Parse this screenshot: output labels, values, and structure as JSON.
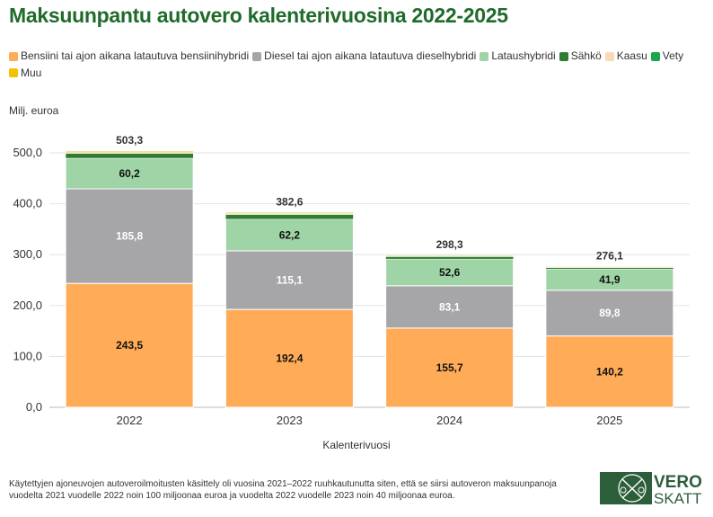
{
  "chart_data": {
    "type": "stacked-bar",
    "title": "Maksuunpantu autovero kalenterivuosina 2022-2025",
    "xlabel": "Kalenterivuosi",
    "ylabel": "Milj. euroa",
    "ylim": [
      0,
      500
    ],
    "yticks": [
      "0,0",
      "100,0",
      "200,0",
      "300,0",
      "400,0",
      "500,0"
    ],
    "grid": true,
    "legend_position": "top",
    "categories": [
      "2022",
      "2023",
      "2024",
      "2025"
    ],
    "totals": [
      "503,3",
      "382,6",
      "298,3",
      "276,1"
    ],
    "series": [
      {
        "name": "Bensiini tai ajon aikana latautuva bensiinihybridi",
        "color": "#ffab57",
        "values": [
          243.5,
          192.4,
          155.7,
          140.2
        ],
        "labels": [
          "243,5",
          "192,4",
          "155,7",
          "140,2"
        ]
      },
      {
        "name": "Diesel tai ajon aikana latautuva dieselhybridi",
        "color": "#a6a6a8",
        "values": [
          185.8,
          115.1,
          83.1,
          89.8
        ],
        "labels": [
          "185,8",
          "115,1",
          "83,1",
          "89,8"
        ]
      },
      {
        "name": "Lataushybridi",
        "color": "#9fd4a6",
        "values": [
          60.2,
          62.2,
          52.6,
          41.9
        ],
        "labels": [
          "60,2",
          "62,2",
          "52,6",
          "41,9"
        ]
      },
      {
        "name": "Sähkö",
        "color": "#2e7d32",
        "values": [
          9.0,
          9.0,
          4.5,
          2.5
        ]
      },
      {
        "name": "Kaasu",
        "color": "#fcd9b5",
        "values": [
          3.0,
          2.5,
          1.5,
          1.0
        ]
      },
      {
        "name": "Vety",
        "color": "#1aa64a",
        "values": [
          0.3,
          0.2,
          0.1,
          0.1
        ]
      },
      {
        "name": "Muu",
        "color": "#f2c200",
        "values": [
          1.5,
          1.2,
          0.8,
          0.6
        ]
      }
    ]
  },
  "note": "Käytettyjen ajoneuvojen autoveroilmoitusten käsittely oli vuosina 2021–2022 ruuhkautunutta siten, että se siirsi autoveron maksuunpanoja vuodelta 2021 vuodelle 2022 noin 100 miljoonaa euroa ja vuodelta 2022 vuodelle 2023 noin 40 miljoonaa euroa.",
  "logo": {
    "line1": "VERO",
    "line2": "SKATT"
  }
}
